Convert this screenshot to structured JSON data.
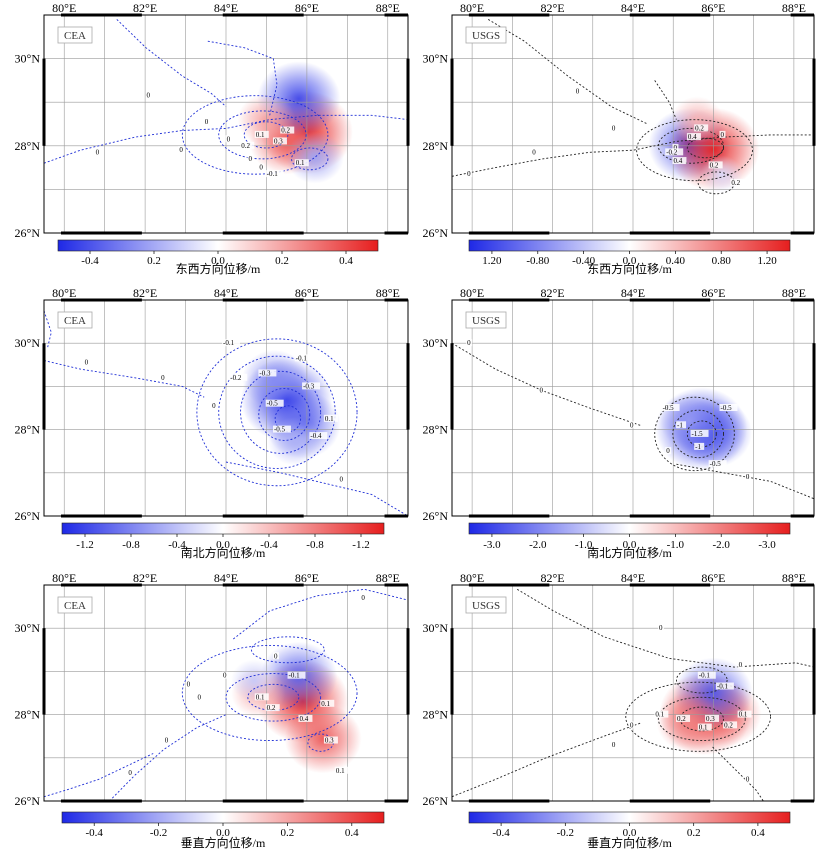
{
  "panels": [
    {
      "label": "CEA",
      "component": "东西方向位移/m",
      "lon_ticks": [
        "80°E",
        "82°E",
        "84°E",
        "86°E",
        "88°E"
      ],
      "lat_ticks": [
        "30°N",
        "28°N",
        "26°N"
      ],
      "colorbar_ticks": [
        "-0.4",
        "0.2",
        "0.0",
        "0.2",
        "0.4"
      ],
      "contour_labels": [
        "0",
        "0",
        "0",
        "0",
        "0",
        "0",
        "0.1",
        "0.2",
        "0.3",
        "0.2",
        "-0.1",
        "0.1",
        "0"
      ]
    },
    {
      "label": "USGS",
      "component": "东西方向位移/m",
      "lon_ticks": [
        "80°E",
        "82°E",
        "84°E",
        "86°E",
        "88°E"
      ],
      "lat_ticks": [
        "30°N",
        "28°N",
        "26°N"
      ],
      "colorbar_ticks": [
        "1.20",
        "-0.80",
        "-0.40",
        "0.0",
        "0.40",
        "0.80",
        "1.20"
      ],
      "contour_labels": [
        "0",
        "0",
        "0",
        "0",
        "0",
        "0",
        "0.2",
        "0.4",
        "-0.2",
        "0.2",
        "0.4",
        "0.2"
      ]
    },
    {
      "label": "CEA",
      "component": "南北方向位移/m",
      "lon_ticks": [
        "80°E",
        "82°E",
        "84°E",
        "86°E",
        "88°E"
      ],
      "lat_ticks": [
        "30°N",
        "28°N",
        "26°N"
      ],
      "colorbar_ticks": [
        "-1.2",
        "-0.8",
        "-0.4",
        "0.0",
        "-0.4",
        "-0.8",
        "-1.2"
      ],
      "contour_labels": [
        "0",
        "0",
        "0",
        "0",
        "-0.1",
        "-0.2",
        "-0.3",
        "-0.5",
        "-0.1",
        "-0.3",
        "-0.5",
        "0.1",
        "-0.4"
      ]
    },
    {
      "label": "USGS",
      "component": "南北方向位移/m",
      "lon_ticks": [
        "80°E",
        "82°E",
        "84°E",
        "86°E",
        "88°E"
      ],
      "lat_ticks": [
        "30°N",
        "28°N",
        "26°N"
      ],
      "colorbar_ticks": [
        "-3.0",
        "-2.0",
        "-1.0",
        "0.0",
        "-1.0",
        "-2.0",
        "-3.0"
      ],
      "contour_labels": [
        "0",
        "0",
        "0",
        "0",
        "0",
        "-0.5",
        "-1",
        "-1.5",
        "-0.5",
        "-1",
        "-0.5"
      ]
    },
    {
      "label": "CEA",
      "component": "垂直方向位移/m",
      "lon_ticks": [
        "80°E",
        "82°E",
        "84°E",
        "86°E",
        "88°E"
      ],
      "lat_ticks": [
        "30°N",
        "28°N",
        "26°N"
      ],
      "colorbar_ticks": [
        "-0.4",
        "-0.2",
        "0.0",
        "0.2",
        "0.4"
      ],
      "contour_labels": [
        "0",
        "0",
        "0",
        "0",
        "0",
        "0",
        "-0.1",
        "0.1",
        "0.2",
        "0.1",
        "0.4",
        "0.3",
        "0.1",
        "0"
      ]
    },
    {
      "label": "USGS",
      "component": "垂直方向位移/m",
      "lon_ticks": [
        "80°E",
        "82°E",
        "84°E",
        "86°E",
        "88°E"
      ],
      "lat_ticks": [
        "30°N",
        "28°N",
        "26°N"
      ],
      "colorbar_ticks": [
        "-0.4",
        "-0.2",
        "0.0",
        "0.2",
        "0.4"
      ],
      "contour_labels": [
        "0",
        "0",
        "0",
        "0",
        "-0.1",
        "0.1",
        "0.2",
        "0.3",
        "-0.1",
        "0.1",
        "0.2",
        "0.1",
        "0"
      ]
    }
  ],
  "chart_data": [
    {
      "type": "heatmap",
      "source": "CEA",
      "component": "东西方向位移/m",
      "lon_range": [
        79,
        88
      ],
      "lat_range": [
        25.9,
        31.1
      ],
      "features": [
        {
          "lon": 85.5,
          "lat": 28.3,
          "value": 0.35
        },
        {
          "lon": 85.0,
          "lat": 28.1,
          "value": 0.25
        },
        {
          "lon": 85.3,
          "lat": 29.1,
          "value": -0.3
        },
        {
          "lon": 85.7,
          "lat": 27.7,
          "value": -0.15
        },
        {
          "lon": 84.5,
          "lat": 28.6,
          "value": 0.15
        }
      ],
      "colorbar_ticks": [
        "-0.4",
        "0.2",
        "0.0",
        "0.2",
        "0.4"
      ]
    },
    {
      "type": "heatmap",
      "source": "USGS",
      "component": "东西方向位移/m",
      "lon_range": [
        79,
        88
      ],
      "lat_range": [
        25.9,
        31.1
      ],
      "features": [
        {
          "lon": 84.9,
          "lat": 28.0,
          "value": -1.0
        },
        {
          "lon": 85.5,
          "lat": 27.9,
          "value": 1.2
        },
        {
          "lon": 85.1,
          "lat": 28.6,
          "value": 0.4
        },
        {
          "lon": 85.7,
          "lat": 27.3,
          "value": -0.2
        }
      ],
      "colorbar_ticks": [
        "1.20",
        "-0.80",
        "-0.40",
        "0.0",
        "0.40",
        "0.80",
        "1.20"
      ]
    },
    {
      "type": "heatmap",
      "source": "CEA",
      "component": "南北方向位移/m",
      "lon_range": [
        79,
        88
      ],
      "lat_range": [
        25.9,
        31.1
      ],
      "features": [
        {
          "lon": 85.0,
          "lat": 28.7,
          "value": -1.1
        },
        {
          "lon": 85.4,
          "lat": 28.1,
          "value": -0.8
        },
        {
          "lon": 84.7,
          "lat": 29.2,
          "value": -0.6
        },
        {
          "lon": 85.2,
          "lat": 27.7,
          "value": -0.4
        }
      ],
      "colorbar_ticks": [
        "-1.2",
        "-0.8",
        "-0.4",
        "0.0",
        "-0.4",
        "-0.8",
        "-1.2"
      ]
    },
    {
      "type": "heatmap",
      "source": "USGS",
      "component": "南北方向位移/m",
      "lon_range": [
        79,
        88
      ],
      "lat_range": [
        25.9,
        31.1
      ],
      "features": [
        {
          "lon": 85.2,
          "lat": 28.0,
          "value": -3.2
        },
        {
          "lon": 85.5,
          "lat": 27.9,
          "value": -2.4
        },
        {
          "lon": 84.9,
          "lat": 28.2,
          "value": -1.5
        }
      ],
      "colorbar_ticks": [
        "-3.0",
        "-2.0",
        "-1.0",
        "0.0",
        "-1.0",
        "-2.0",
        "-3.0"
      ]
    },
    {
      "type": "heatmap",
      "source": "CEA",
      "component": "垂直方向位移/m",
      "lon_range": [
        79,
        88
      ],
      "lat_range": [
        25.9,
        31.1
      ],
      "features": [
        {
          "lon": 85.4,
          "lat": 28.3,
          "value": 0.4
        },
        {
          "lon": 85.3,
          "lat": 28.9,
          "value": -0.3
        },
        {
          "lon": 84.3,
          "lat": 28.5,
          "value": 0.15
        },
        {
          "lon": 85.9,
          "lat": 27.4,
          "value": 0.3
        },
        {
          "lon": 84.2,
          "lat": 28.8,
          "value": -0.1
        }
      ],
      "colorbar_ticks": [
        "-0.4",
        "-0.2",
        "0.0",
        "0.2",
        "0.4"
      ]
    },
    {
      "type": "heatmap",
      "source": "USGS",
      "component": "垂直方向位移/m",
      "lon_range": [
        79,
        88
      ],
      "lat_range": [
        25.9,
        31.1
      ],
      "features": [
        {
          "lon": 85.3,
          "lat": 28.0,
          "value": 0.45
        },
        {
          "lon": 85.8,
          "lat": 28.0,
          "value": 0.3
        },
        {
          "lon": 85.5,
          "lat": 28.5,
          "value": -0.35
        },
        {
          "lon": 84.9,
          "lat": 27.8,
          "value": 0.25
        }
      ],
      "colorbar_ticks": [
        "-0.4",
        "-0.2",
        "0.0",
        "0.2",
        "0.4"
      ]
    }
  ],
  "colors": {
    "negative": "#1e28e6",
    "positive": "#e61e1e",
    "cea_contour": "#1f2fd6",
    "usgs_contour": "#222222",
    "grid": "#9a9a9a"
  }
}
